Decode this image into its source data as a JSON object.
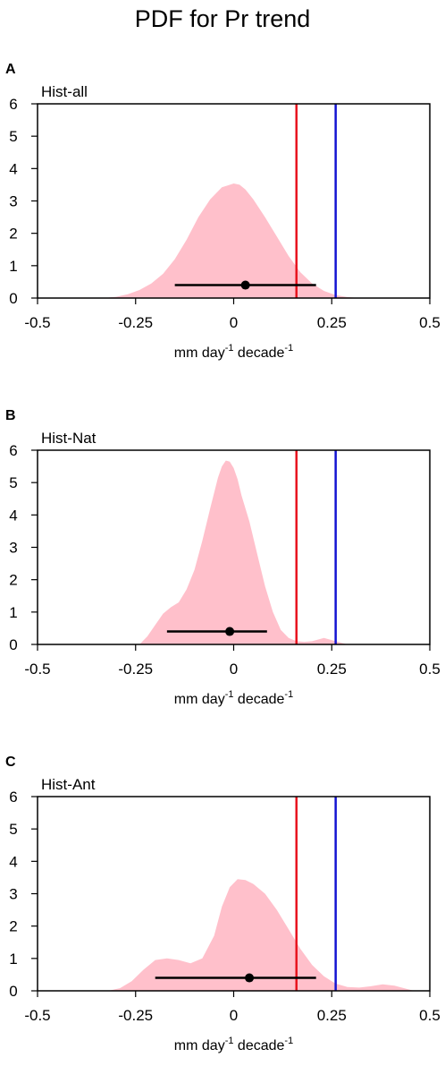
{
  "figure_title": "PDF for Pr trend",
  "colors": {
    "pdf_fill": "#FFC0CB",
    "red_line": "#E8141F",
    "blue_line": "#1414D2",
    "marker": "#000000"
  },
  "chart_data": [
    {
      "type": "area",
      "panel_letter": "A",
      "title": "Hist-all",
      "xlabel": "mm day",
      "xlabel_sup1": "-1",
      "xlabel_mid": " decade",
      "xlabel_sup2": "-1",
      "xlim": [
        -0.5,
        0.5
      ],
      "ylim": [
        0,
        6
      ],
      "xticks": [
        -0.5,
        -0.25,
        0,
        0.25,
        0.5
      ],
      "xtick_labels": [
        "-0.5",
        "-0.25",
        "0",
        "0.25",
        "0.5"
      ],
      "yticks": [
        0,
        1,
        2,
        3,
        4,
        5,
        6
      ],
      "ytick_labels": [
        "0",
        "1",
        "2",
        "3",
        "4",
        "5",
        "6"
      ],
      "pdf": {
        "x": [
          -0.33,
          -0.3,
          -0.27,
          -0.24,
          -0.21,
          -0.18,
          -0.15,
          -0.12,
          -0.09,
          -0.06,
          -0.03,
          0.0,
          0.015,
          0.03,
          0.05,
          0.08,
          0.11,
          0.14,
          0.17,
          0.2,
          0.23,
          0.26,
          0.29,
          0.32
        ],
        "y": [
          0.0,
          0.04,
          0.12,
          0.25,
          0.45,
          0.75,
          1.2,
          1.8,
          2.5,
          3.05,
          3.42,
          3.54,
          3.5,
          3.35,
          3.05,
          2.5,
          1.9,
          1.3,
          0.8,
          0.45,
          0.22,
          0.09,
          0.03,
          0.0
        ]
      },
      "red_line_x": 0.16,
      "blue_line_x": 0.26,
      "point": {
        "x": 0.03,
        "y": 0.4,
        "low": -0.15,
        "high": 0.21
      }
    },
    {
      "type": "area",
      "panel_letter": "B",
      "title": "Hist-Nat",
      "xlabel": "mm day",
      "xlabel_sup1": "-1",
      "xlabel_mid": " decade",
      "xlabel_sup2": "-1",
      "xlim": [
        -0.5,
        0.5
      ],
      "ylim": [
        0,
        6
      ],
      "xticks": [
        -0.5,
        -0.25,
        0,
        0.25,
        0.5
      ],
      "xtick_labels": [
        "-0.5",
        "-0.25",
        "0",
        "0.25",
        "0.5"
      ],
      "yticks": [
        0,
        1,
        2,
        3,
        4,
        5,
        6
      ],
      "ytick_labels": [
        "0",
        "1",
        "2",
        "3",
        "4",
        "5",
        "6"
      ],
      "pdf": {
        "x": [
          -0.24,
          -0.22,
          -0.2,
          -0.18,
          -0.16,
          -0.14,
          -0.12,
          -0.1,
          -0.08,
          -0.06,
          -0.04,
          -0.03,
          -0.02,
          -0.01,
          0.0,
          0.01,
          0.02,
          0.04,
          0.06,
          0.08,
          0.1,
          0.12,
          0.14,
          0.16,
          0.18,
          0.2,
          0.23,
          0.26,
          0.29
        ],
        "y": [
          0.0,
          0.25,
          0.6,
          0.95,
          1.15,
          1.3,
          1.7,
          2.3,
          3.2,
          4.2,
          5.15,
          5.5,
          5.68,
          5.65,
          5.45,
          5.1,
          4.6,
          3.8,
          2.8,
          1.8,
          1.0,
          0.45,
          0.2,
          0.1,
          0.08,
          0.1,
          0.2,
          0.1,
          0.0
        ]
      },
      "red_line_x": 0.16,
      "blue_line_x": 0.26,
      "point": {
        "x": -0.01,
        "y": 0.4,
        "low": -0.17,
        "high": 0.085
      }
    },
    {
      "type": "area",
      "panel_letter": "C",
      "title": "Hist-Ant",
      "xlabel": "mm day",
      "xlabel_sup1": "-1",
      "xlabel_mid": " decade",
      "xlabel_sup2": "-1",
      "xlim": [
        -0.5,
        0.5
      ],
      "ylim": [
        0,
        6
      ],
      "xticks": [
        -0.5,
        -0.25,
        0,
        0.25,
        0.5
      ],
      "xtick_labels": [
        "-0.5",
        "-0.25",
        "0",
        "0.25",
        "0.5"
      ],
      "yticks": [
        0,
        1,
        2,
        3,
        4,
        5,
        6
      ],
      "ytick_labels": [
        "0",
        "1",
        "2",
        "3",
        "4",
        "5",
        "6"
      ],
      "pdf": {
        "x": [
          -0.32,
          -0.29,
          -0.26,
          -0.23,
          -0.2,
          -0.17,
          -0.14,
          -0.11,
          -0.08,
          -0.05,
          -0.03,
          -0.01,
          0.01,
          0.03,
          0.05,
          0.08,
          0.11,
          0.14,
          0.17,
          0.2,
          0.23,
          0.26,
          0.29,
          0.32,
          0.35,
          0.38,
          0.41,
          0.44,
          0.46
        ],
        "y": [
          0.0,
          0.08,
          0.3,
          0.65,
          0.95,
          1.0,
          0.95,
          0.85,
          1.0,
          1.7,
          2.6,
          3.2,
          3.45,
          3.42,
          3.3,
          3.0,
          2.5,
          1.9,
          1.3,
          0.8,
          0.45,
          0.22,
          0.12,
          0.1,
          0.14,
          0.2,
          0.16,
          0.06,
          0.0
        ]
      },
      "red_line_x": 0.16,
      "blue_line_x": 0.26,
      "point": {
        "x": 0.04,
        "y": 0.4,
        "low": -0.2,
        "high": 0.21
      }
    }
  ]
}
